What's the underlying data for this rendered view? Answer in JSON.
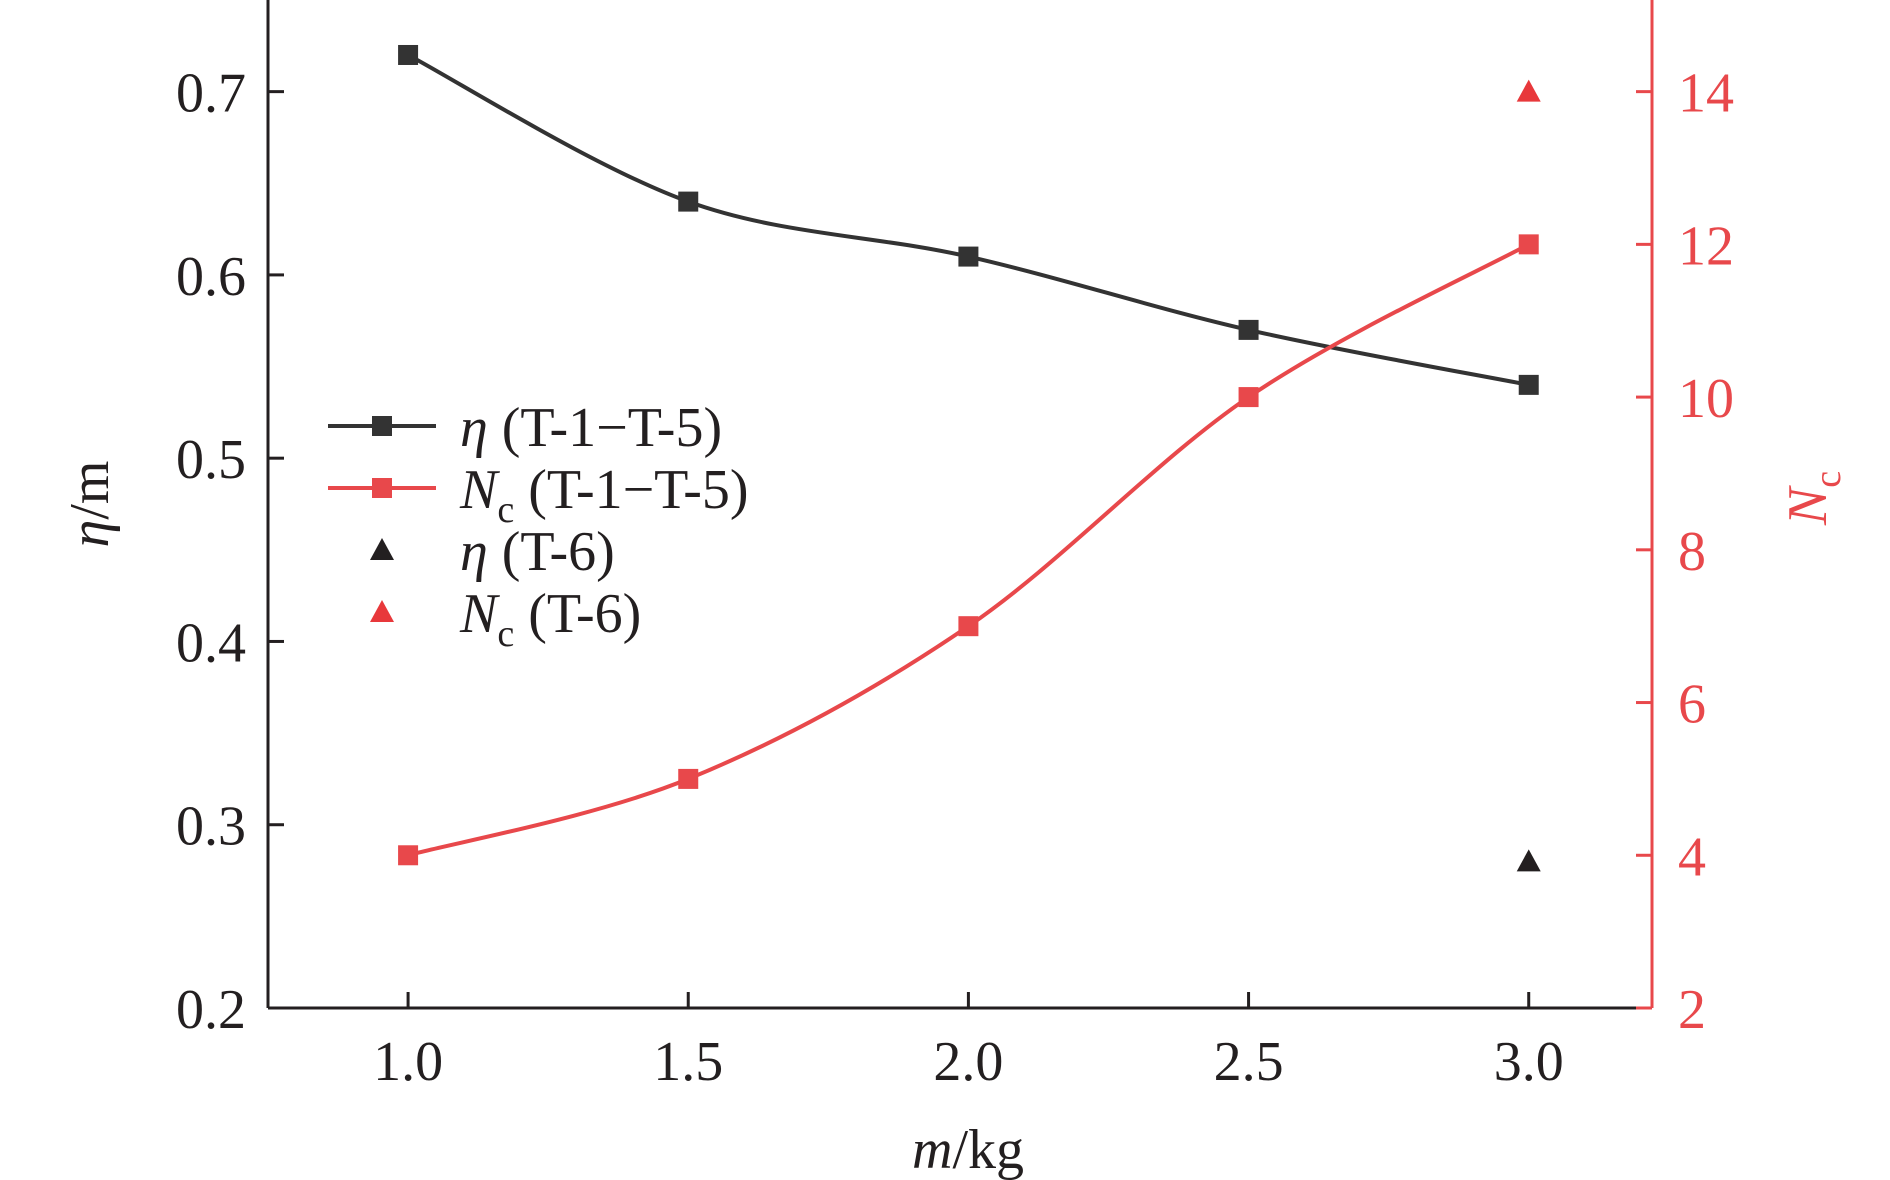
{
  "chart_data": {
    "type": "line",
    "x": [
      1.0,
      1.5,
      2.0,
      2.5,
      3.0
    ],
    "x_tick_labels": [
      "1.0",
      "1.5",
      "2.0",
      "2.5",
      "3.0"
    ],
    "xlim": [
      0.75,
      3.22
    ],
    "xlabel": {
      "var": "m",
      "unit": "/kg"
    },
    "left_axis": {
      "ylim": [
        0.2,
        0.75
      ],
      "ticks": [
        0.2,
        0.3,
        0.4,
        0.5,
        0.6,
        0.7
      ],
      "tick_labels": [
        "0.2",
        "0.3",
        "0.4",
        "0.5",
        "0.6",
        "0.7"
      ],
      "ylabel": {
        "var": "η",
        "unit": "/m"
      },
      "color": "#231f20"
    },
    "right_axis": {
      "ylim": [
        2,
        15.2
      ],
      "ticks": [
        2,
        4,
        6,
        8,
        10,
        12,
        14
      ],
      "tick_labels": [
        "2",
        "4",
        "6",
        "8",
        "10",
        "12",
        "14"
      ],
      "ylabel": {
        "var": "N",
        "sub": "c"
      },
      "color": "#e8484b"
    },
    "series": [
      {
        "name": "η (T-1−T-5)",
        "axis": "left",
        "marker": "square",
        "line": true,
        "color": "#333333",
        "x": [
          1.0,
          1.5,
          2.0,
          2.5,
          3.0
        ],
        "values": [
          0.72,
          0.64,
          0.61,
          0.57,
          0.54
        ]
      },
      {
        "name": "Nc (T-1−T-5)",
        "axis": "right",
        "marker": "square",
        "line": true,
        "color": "#e8484b",
        "x": [
          1.0,
          1.5,
          2.0,
          2.5,
          3.0
        ],
        "values": [
          4,
          5,
          7,
          10,
          12
        ]
      },
      {
        "name": "η (T-6)",
        "axis": "left",
        "marker": "triangle",
        "line": false,
        "color": "#231f20",
        "x": [
          3.0
        ],
        "values": [
          0.28
        ]
      },
      {
        "name": "Nc (T-6)",
        "axis": "right",
        "marker": "triangle",
        "line": false,
        "color": "#e8383b",
        "x": [
          3.0
        ],
        "values": [
          14
        ]
      }
    ],
    "legend": {
      "placement": "left-middle",
      "entries": [
        {
          "var": "η",
          "sub": "",
          "text": " (T-1−T-5)"
        },
        {
          "var": "N",
          "sub": "c",
          "text": " (T-1−T-5)"
        },
        {
          "var": "η",
          "sub": "",
          "text": " (T-6)"
        },
        {
          "var": "N",
          "sub": "c",
          "text": " (T-6)"
        }
      ]
    },
    "grid": false
  }
}
